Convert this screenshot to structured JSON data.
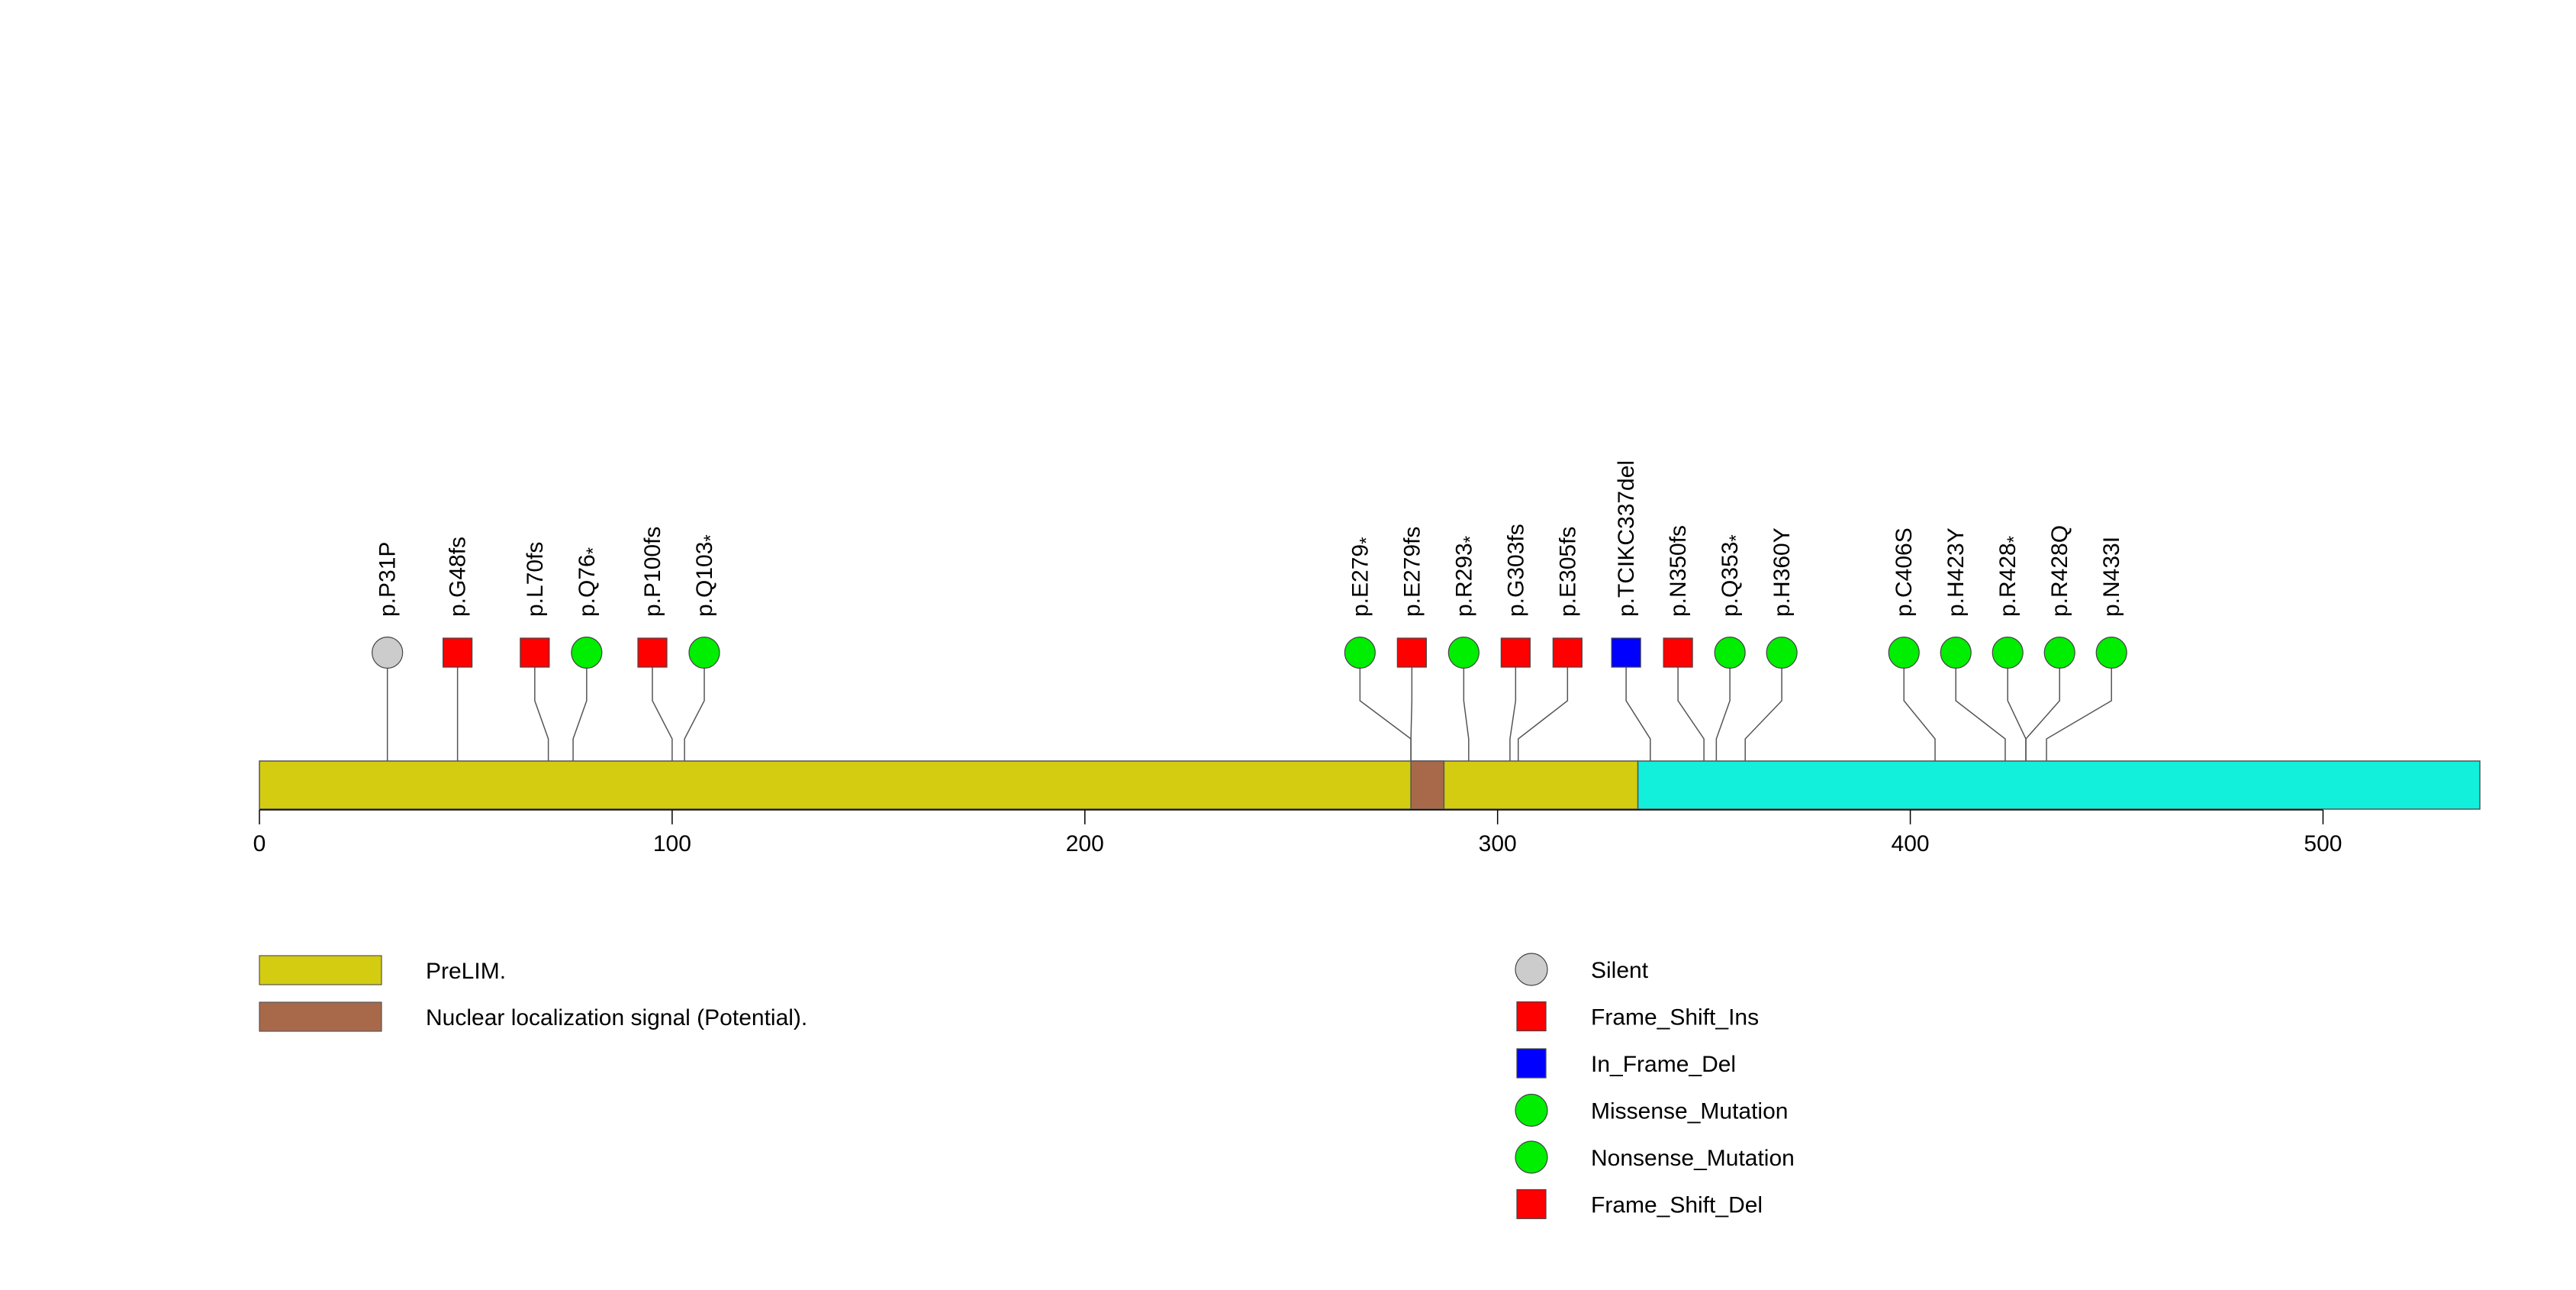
{
  "chart_data": {
    "type": "lollipop",
    "protein_length": 538,
    "axis": {
      "range": [
        0,
        538
      ],
      "ticks": [
        0,
        100,
        200,
        300,
        400,
        500
      ]
    },
    "regions": [
      {
        "name": "PreLIM.",
        "start": 1,
        "end": 334,
        "color": "#d4cc10"
      },
      {
        "name": "Nuclear localization signal (Potential).",
        "start": 279,
        "end": 287,
        "color": "#a8694a"
      },
      {
        "name": "",
        "start": 334,
        "end": 538,
        "color": "#12efdb"
      }
    ],
    "mutations": [
      {
        "label": "p.P31P",
        "position": 31,
        "type": "Silent",
        "sup": ""
      },
      {
        "label": "p.G48fs",
        "position": 48,
        "type": "Frame_Shift_Ins",
        "sup": ""
      },
      {
        "label": "p.L70fs",
        "position": 70,
        "type": "Frame_Shift_Ins",
        "sup": ""
      },
      {
        "label": "p.Q76",
        "position": 76,
        "type": "Nonsense_Mutation",
        "sup": "*"
      },
      {
        "label": "p.P100fs",
        "position": 100,
        "type": "Frame_Shift_Ins",
        "sup": ""
      },
      {
        "label": "p.Q103",
        "position": 103,
        "type": "Nonsense_Mutation",
        "sup": "*"
      },
      {
        "label": "p.E279",
        "position": 279,
        "type": "Nonsense_Mutation",
        "sup": "*"
      },
      {
        "label": "p.E279fs",
        "position": 279,
        "type": "Frame_Shift_Ins",
        "sup": ""
      },
      {
        "label": "p.R293",
        "position": 293,
        "type": "Nonsense_Mutation",
        "sup": "*"
      },
      {
        "label": "p.G303fs",
        "position": 303,
        "type": "Frame_Shift_Ins",
        "sup": ""
      },
      {
        "label": "p.E305fs",
        "position": 305,
        "type": "Frame_Shift_Ins",
        "sup": ""
      },
      {
        "label": "p.TCIKC337del",
        "position": 337,
        "type": "In_Frame_Del",
        "sup": ""
      },
      {
        "label": "p.N350fs",
        "position": 350,
        "type": "Frame_Shift_Ins",
        "sup": ""
      },
      {
        "label": "p.Q353",
        "position": 353,
        "type": "Nonsense_Mutation",
        "sup": "*"
      },
      {
        "label": "p.H360Y",
        "position": 360,
        "type": "Missense_Mutation",
        "sup": ""
      },
      {
        "label": "p.C406S",
        "position": 406,
        "type": "Missense_Mutation",
        "sup": ""
      },
      {
        "label": "p.H423Y",
        "position": 423,
        "type": "Missense_Mutation",
        "sup": ""
      },
      {
        "label": "p.R428",
        "position": 428,
        "type": "Nonsense_Mutation",
        "sup": "*"
      },
      {
        "label": "p.R428Q",
        "position": 428,
        "type": "Missense_Mutation",
        "sup": ""
      },
      {
        "label": "p.N433I",
        "position": 433,
        "type": "Missense_Mutation",
        "sup": ""
      }
    ],
    "legend_regions": [
      {
        "name": "PreLIM.",
        "color": "#d4cc10"
      },
      {
        "name": "Nuclear localization signal (Potential).",
        "color": "#a8694a"
      }
    ],
    "legend_mutations": [
      {
        "name": "Silent",
        "shape": "circle",
        "color": "#cccccc"
      },
      {
        "name": "Frame_Shift_Ins",
        "shape": "square",
        "color": "#ff0000"
      },
      {
        "name": "In_Frame_Del",
        "shape": "square",
        "color": "#0000ff"
      },
      {
        "name": "Missense_Mutation",
        "shape": "circle",
        "color": "#00ee00"
      },
      {
        "name": "Nonsense_Mutation",
        "shape": "circle",
        "color": "#00ee00"
      },
      {
        "name": "Frame_Shift_Del",
        "shape": "square",
        "color": "#ff0000"
      }
    ],
    "colors": {
      "Silent": "#cccccc",
      "Frame_Shift_Ins": "#ff0000",
      "Frame_Shift_Del": "#ff0000",
      "In_Frame_Del": "#0000ff",
      "Missense_Mutation": "#00ee00",
      "Nonsense_Mutation": "#00ee00"
    }
  }
}
